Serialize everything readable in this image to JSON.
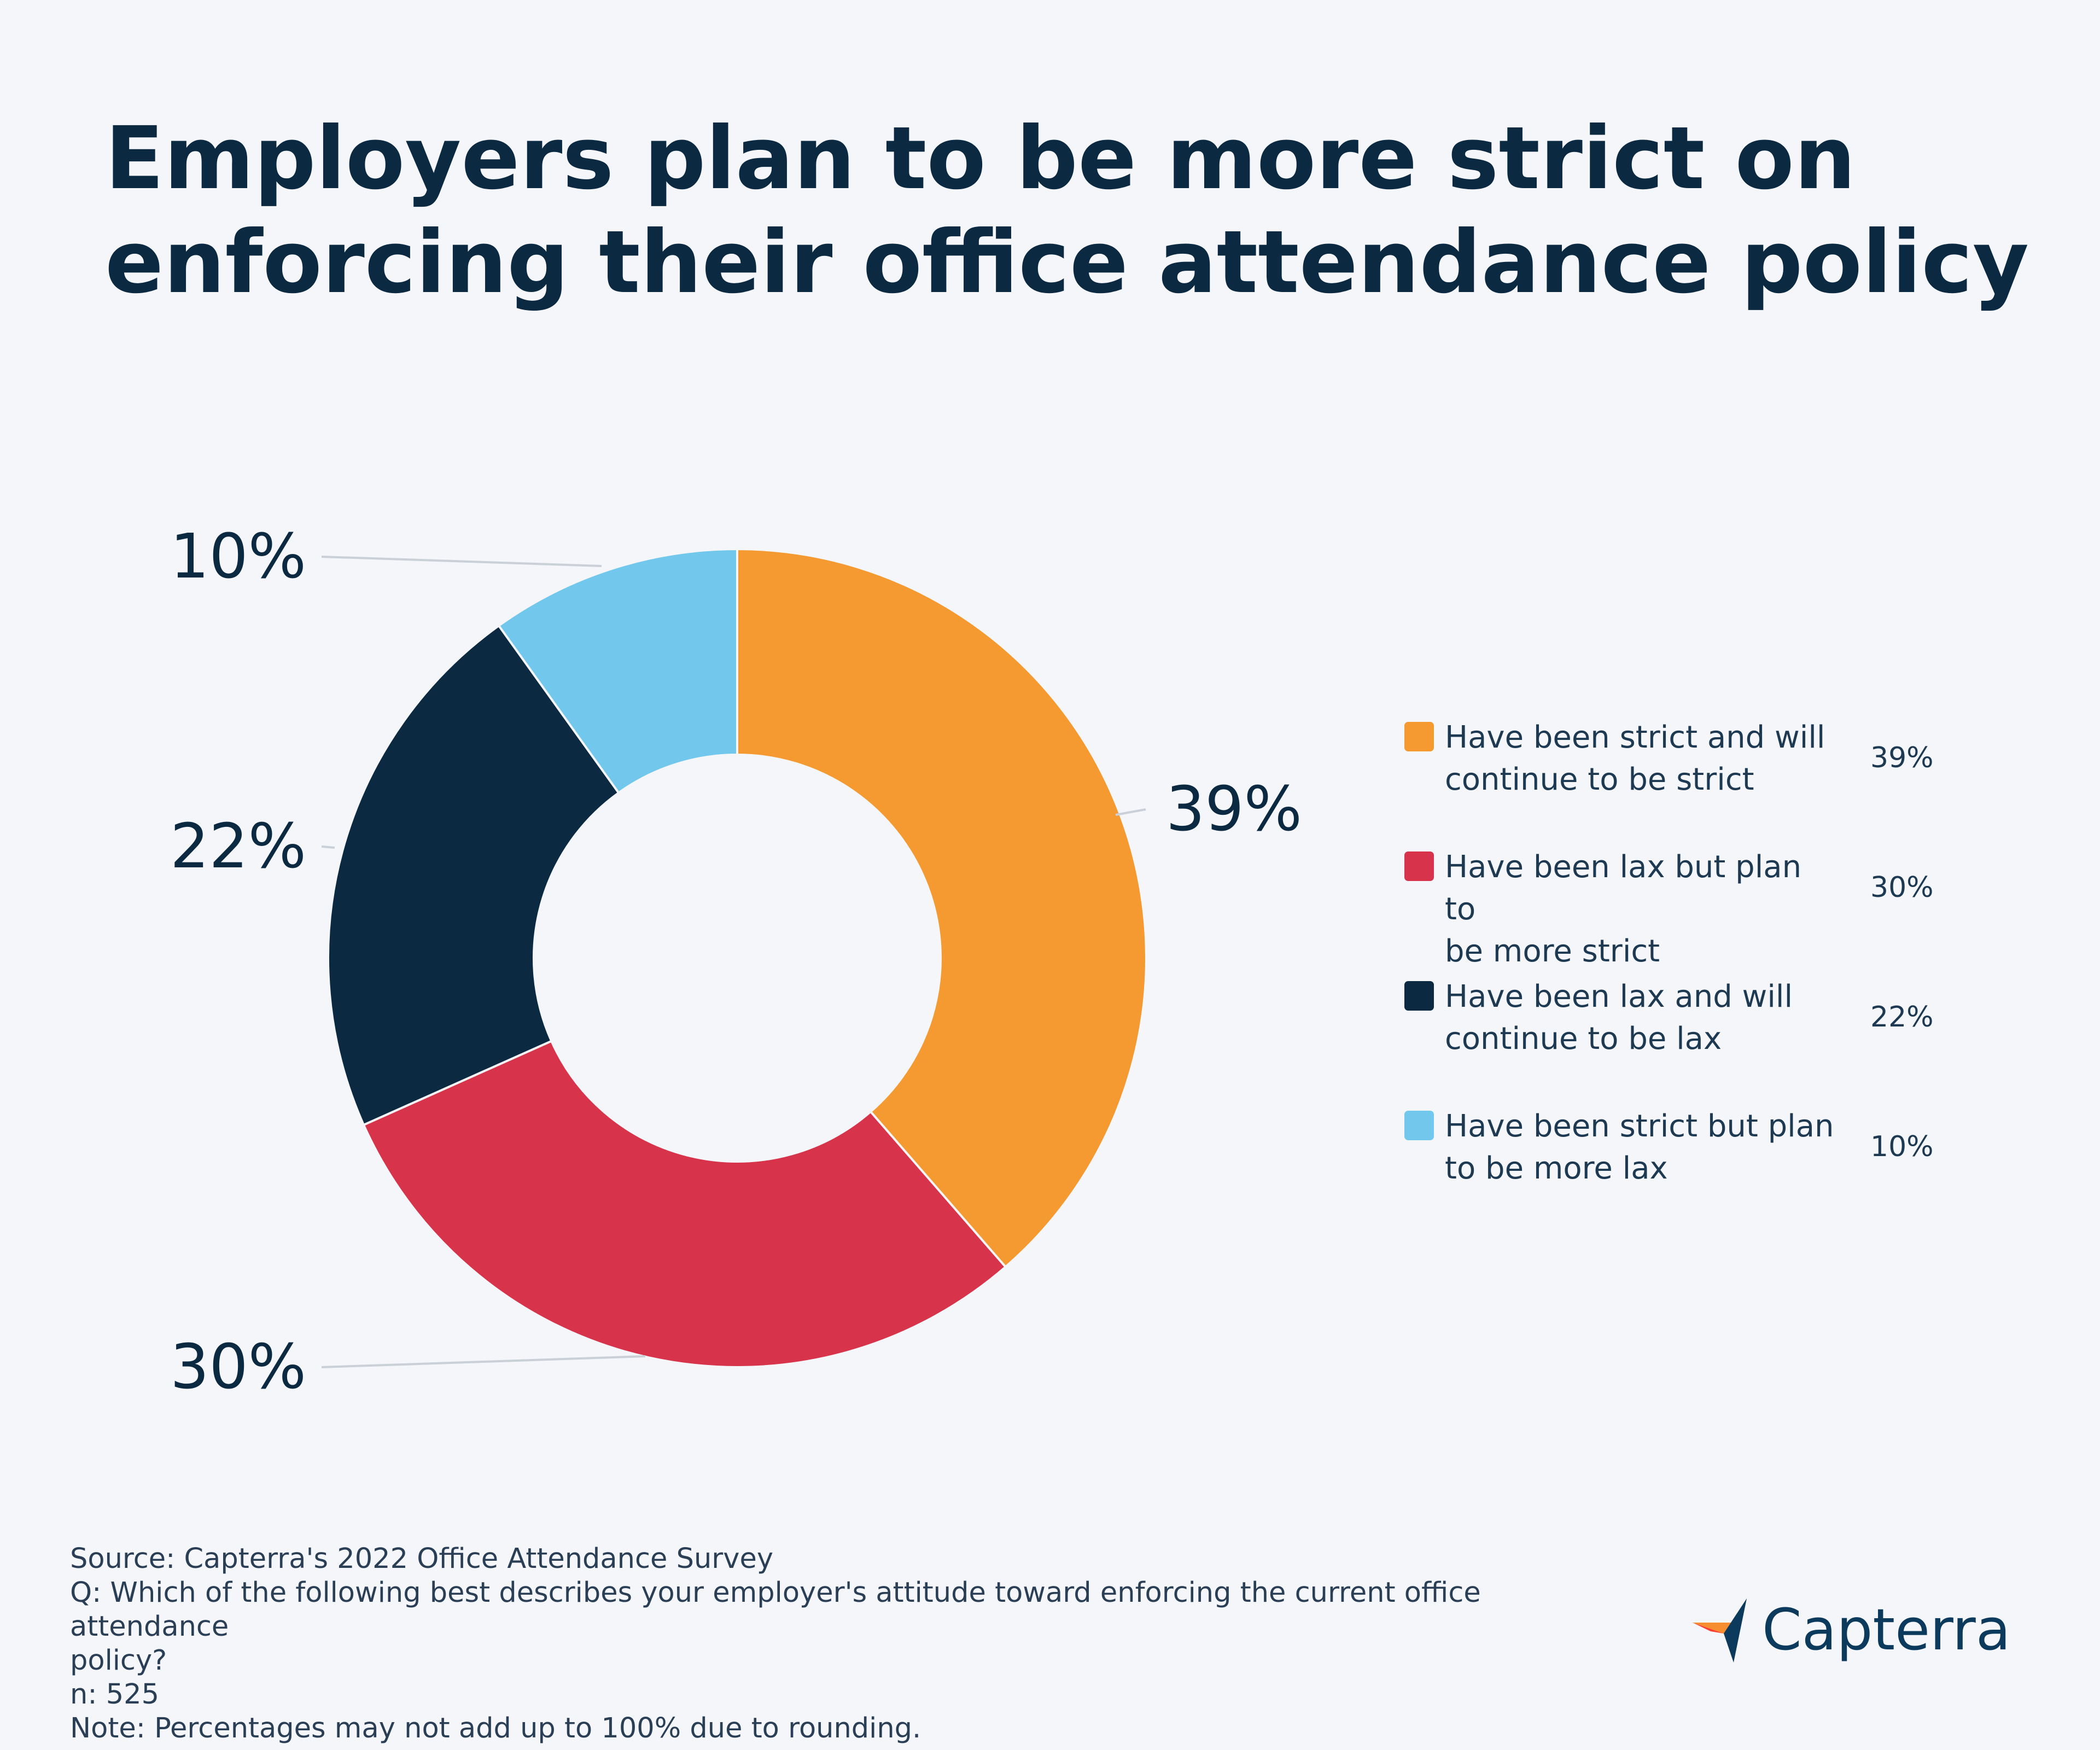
{
  "title_lines": [
    "Employers plan to be more strict on",
    "enforcing their office attendance policy"
  ],
  "chart_data": {
    "type": "pie",
    "style": "donut",
    "categories": [
      "Have been strict and will continue to be strict",
      "Have been lax but plan to be more strict",
      "Have been lax and will continue to be lax",
      "Have been strict but plan to be more lax"
    ],
    "values": [
      39,
      30,
      22,
      10
    ],
    "value_labels": [
      "39%",
      "30%",
      "22%",
      "10%"
    ],
    "colors": [
      "#f49a31",
      "#d7334a",
      "#0b2a42",
      "#72c7ec"
    ],
    "legend_placement": "right"
  },
  "legend": [
    {
      "label_lines": [
        "Have been strict and will",
        "continue to be strict"
      ],
      "value": "39%",
      "color": "#f49a31"
    },
    {
      "label_lines": [
        "Have been lax but plan to",
        "be more strict"
      ],
      "value": "30%",
      "color": "#d7334a"
    },
    {
      "label_lines": [
        "Have been lax and will",
        "continue to be lax"
      ],
      "value": "22%",
      "color": "#0b2a42"
    },
    {
      "label_lines": [
        "Have been strict but plan",
        "to be more lax"
      ],
      "value": "10%",
      "color": "#72c7ec"
    }
  ],
  "footer": {
    "source": "Source: Capterra's 2022 Office Attendance Survey",
    "question_line1": "Q: Which of the following best describes your employer's attitude toward enforcing the current office attendance",
    "question_line2": "policy?",
    "n": "n: 525",
    "note": "Note: Percentages may not add up to 100% due to rounding."
  },
  "brand": {
    "name": "Capterra",
    "logo_icon": "capterra-arrow-logo-icon",
    "colors": [
      "#f68d2e",
      "#ff3d2e",
      "#0b3a5c",
      "#1f9ad6"
    ]
  }
}
